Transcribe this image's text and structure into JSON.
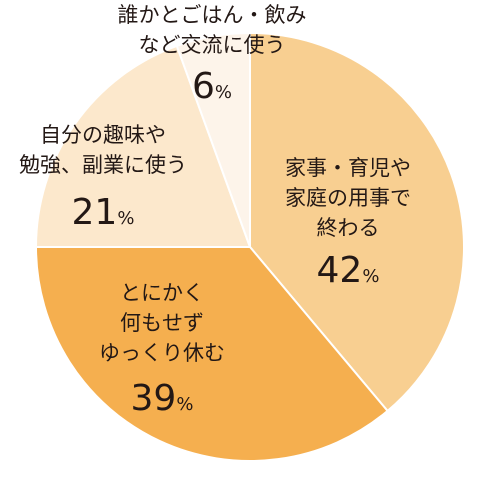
{
  "chart_data": {
    "type": "pie",
    "start": "12 o'clock",
    "direction": "clockwise",
    "slices": [
      {
        "label": [
          "家事・育児や",
          "家庭の用事で",
          "終わる"
        ],
        "value": 42,
        "color": "#f8cf91"
      },
      {
        "label": [
          "とにかく",
          "何もせず",
          "ゆっくり休む"
        ],
        "value": 39,
        "color": "#f5af4f"
      },
      {
        "label": [
          "自分の趣味や",
          "勉強、副業に使う"
        ],
        "value": 21,
        "color": "#fce8cc"
      },
      {
        "label": [
          "誰かとごはん・飲み",
          "など交流に使う"
        ],
        "value": 6,
        "color": "#fdf4ea"
      }
    ],
    "value_suffix": "%"
  }
}
